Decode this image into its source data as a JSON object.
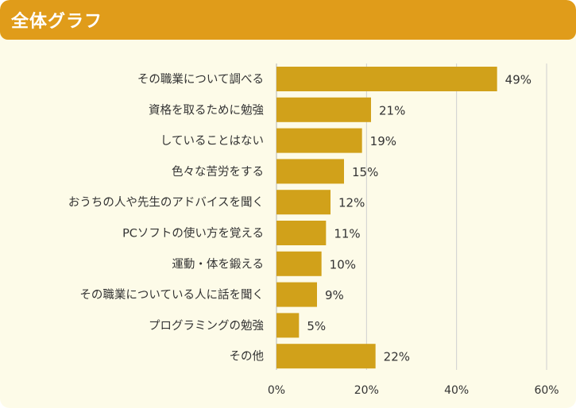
{
  "header": {
    "title": "全体グラフ"
  },
  "colors": {
    "bar": "#d1a11a",
    "header": "#e09c1a",
    "background": "#fdfbe8",
    "grid": "#cfcfcf"
  },
  "chart_data": {
    "type": "bar",
    "orientation": "horizontal",
    "title": "全体グラフ",
    "categories": [
      "その職業について調べる",
      "資格を取るために勉強",
      "していることはない",
      "色々な苦労をする",
      "おうちの人や先生のアドバイスを聞く",
      "PCソフトの使い方を覚える",
      "運動・体を鍛える",
      "その職業についている人に話を聞く",
      "プログラミングの勉強",
      "その他"
    ],
    "values": [
      49,
      21,
      19,
      15,
      12,
      11,
      10,
      9,
      5,
      22
    ],
    "value_labels": [
      "49%",
      "21%",
      "19%",
      "15%",
      "12%",
      "11%",
      "10%",
      "9%",
      "5%",
      "22%"
    ],
    "xlim": [
      0,
      60
    ],
    "xticks": [
      0,
      20,
      40,
      60
    ],
    "xtick_labels": [
      "0%",
      "20%",
      "40%",
      "60%"
    ],
    "grid": true
  }
}
